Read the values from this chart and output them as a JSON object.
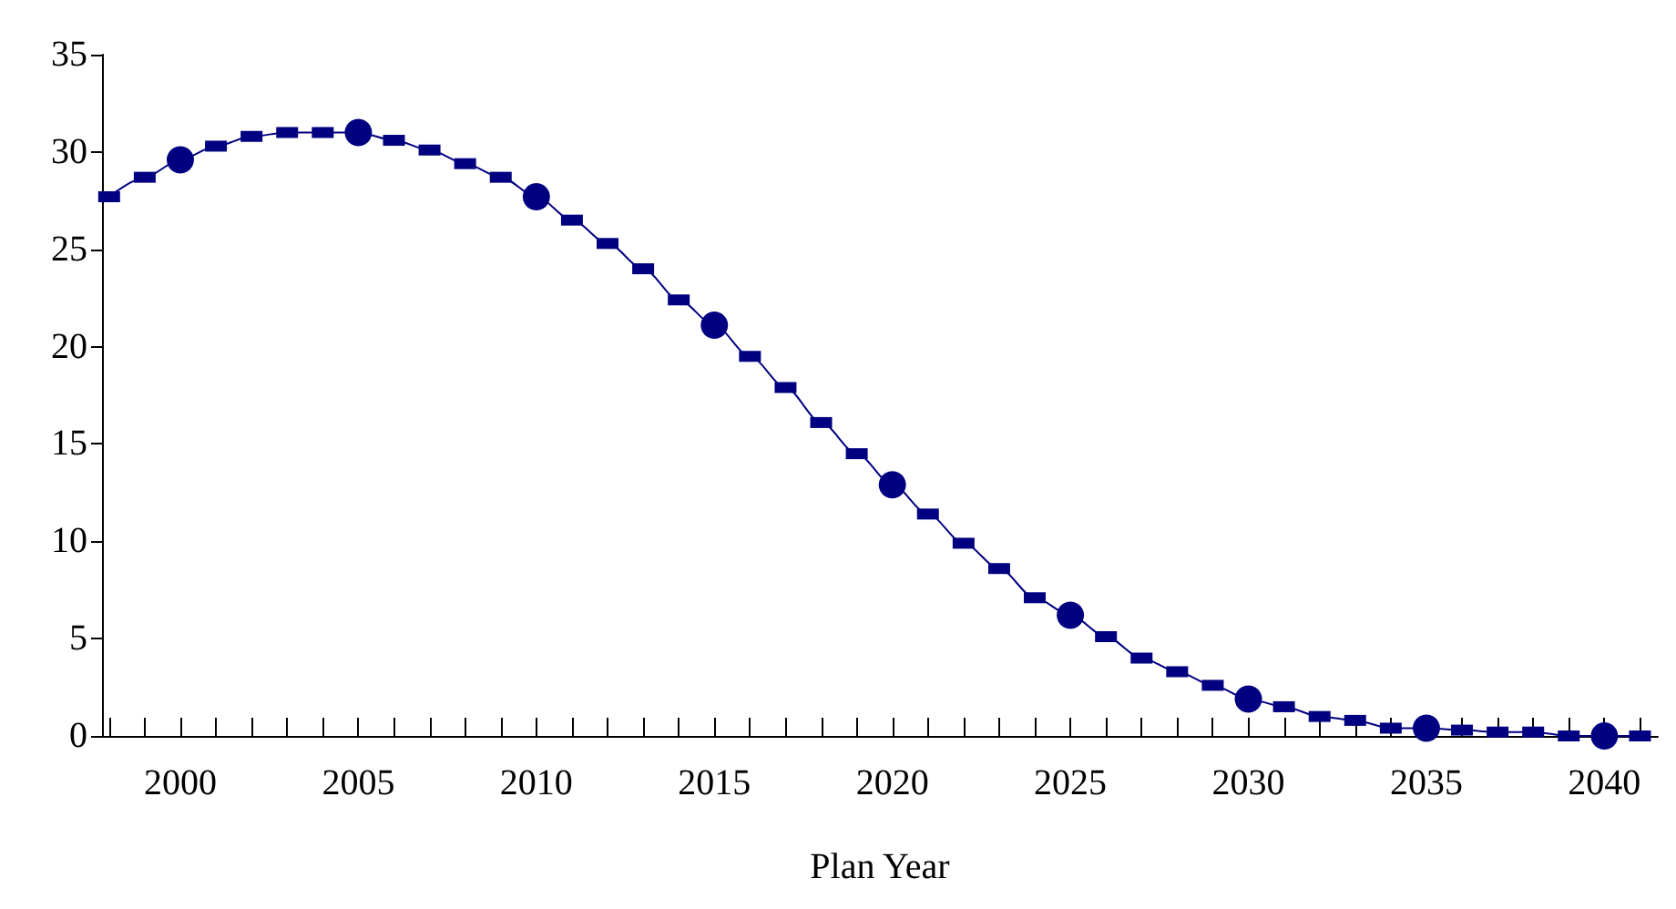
{
  "chart_data": {
    "type": "line",
    "xlabel": "Plan Year",
    "x": [
      1998,
      1999,
      2000,
      2001,
      2002,
      2003,
      2004,
      2005,
      2006,
      2007,
      2008,
      2009,
      2010,
      2011,
      2012,
      2013,
      2014,
      2015,
      2016,
      2017,
      2018,
      2019,
      2020,
      2021,
      2022,
      2023,
      2024,
      2025,
      2026,
      2027,
      2028,
      2029,
      2030,
      2031,
      2032,
      2033,
      2034,
      2035,
      2036,
      2037,
      2038,
      2039,
      2040,
      2041
    ],
    "series": [
      {
        "color": "#000080",
        "marker": "square",
        "values": [
          27.7,
          28.7,
          29.6,
          30.3,
          30.8,
          31.0,
          31.0,
          31.0,
          30.6,
          30.1,
          29.4,
          28.7,
          27.7,
          26.5,
          25.3,
          24.0,
          22.4,
          21.1,
          19.5,
          17.9,
          16.1,
          14.5,
          12.9,
          11.4,
          9.9,
          8.6,
          7.1,
          6.2,
          5.1,
          4.0,
          3.3,
          2.6,
          1.9,
          1.5,
          1.0,
          0.8,
          0.4,
          0.4,
          0.3,
          0.2,
          0.2,
          0.0,
          0.0,
          0.0
        ]
      },
      {
        "type": "scatter",
        "color": "#000080",
        "marker": "circle",
        "x": [
          2000,
          2005,
          2010,
          2015,
          2020,
          2025,
          2030,
          2035,
          2040
        ],
        "values": [
          29.6,
          31.0,
          27.7,
          21.1,
          12.9,
          6.2,
          1.9,
          0.4,
          0.0
        ]
      }
    ],
    "xlim": [
      1997.8,
      2041.5
    ],
    "xticks": [
      {
        "value": 1998,
        "label": null
      },
      {
        "value": 1999,
        "label": null
      },
      2000,
      {
        "value": 2001,
        "label": null
      },
      {
        "value": 2002,
        "label": null
      },
      {
        "value": 2003,
        "label": null
      },
      {
        "value": 2004,
        "label": null
      },
      2005,
      {
        "value": 2006,
        "label": null
      },
      {
        "value": 2007,
        "label": null
      },
      {
        "value": 2008,
        "label": null
      },
      {
        "value": 2009,
        "label": null
      },
      2010,
      {
        "value": 2011,
        "label": null
      },
      {
        "value": 2012,
        "label": null
      },
      {
        "value": 2013,
        "label": null
      },
      {
        "value": 2014,
        "label": null
      },
      2015,
      {
        "value": 2016,
        "label": null
      },
      {
        "value": 2017,
        "label": null
      },
      {
        "value": 2018,
        "label": null
      },
      {
        "value": 2019,
        "label": null
      },
      2020,
      {
        "value": 2021,
        "label": null
      },
      {
        "value": 2022,
        "label": null
      },
      {
        "value": 2023,
        "label": null
      },
      {
        "value": 2024,
        "label": null
      },
      2025,
      {
        "value": 2026,
        "label": null
      },
      {
        "value": 2027,
        "label": null
      },
      {
        "value": 2028,
        "label": null
      },
      {
        "value": 2029,
        "label": null
      },
      2030,
      {
        "value": 2031,
        "label": null
      },
      {
        "value": 2032,
        "label": null
      },
      {
        "value": 2033,
        "label": null
      },
      {
        "value": 2034,
        "label": null
      },
      2035,
      {
        "value": 2036,
        "label": null
      },
      {
        "value": 2037,
        "label": null
      },
      {
        "value": 2038,
        "label": null
      },
      {
        "value": 2039,
        "label": null
      },
      2040,
      {
        "value": 2041,
        "label": null
      }
    ],
    "ylim": [
      0,
      35
    ],
    "yticks": [
      0,
      5,
      10,
      15,
      20,
      25,
      30,
      35
    ],
    "grid": false
  }
}
